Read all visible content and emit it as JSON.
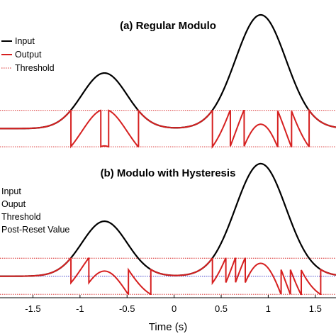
{
  "chart_data": [
    {
      "type": "line",
      "title": "(a) Regular Modulo",
      "x_range": [
        -1.85,
        1.72
      ],
      "y_range": [
        -0.5,
        2.8
      ],
      "legend": {
        "placement": "top-left",
        "entries": [
          {
            "label": "Input",
            "color": "#000000",
            "style": "solid"
          },
          {
            "label": "Output",
            "color": "#d62020",
            "style": "solid"
          },
          {
            "label": "Threshold",
            "color": "#d62020",
            "style": "dotted"
          }
        ]
      },
      "input": {
        "centers": [
          -0.74,
          0.92
        ],
        "amplitudes": [
          1.28,
          2.62
        ],
        "widths": [
          0.34,
          0.38
        ]
      },
      "modulo": {
        "low": -0.42,
        "high": 0.42,
        "hysteresis": 0
      },
      "threshold_levels": [
        -0.42,
        0.42
      ]
    },
    {
      "type": "line",
      "title": "(b) Modulo with Hysteresis",
      "x_range": [
        -1.85,
        1.72
      ],
      "y_range": [
        -0.5,
        2.8
      ],
      "legend": {
        "placement": "top-left",
        "entries": [
          {
            "label": "Input",
            "color": "#000000",
            "style": "solid"
          },
          {
            "label": "Ouput",
            "color": "#d62020",
            "style": "solid"
          },
          {
            "label": "Threshold",
            "color": "#d62020",
            "style": "dotted"
          },
          {
            "label": "Post-Reset Value",
            "color": "#2020c0",
            "style": "dotted"
          }
        ]
      },
      "input": {
        "centers": [
          -0.74,
          0.92
        ],
        "amplitudes": [
          1.28,
          2.62
        ],
        "widths": [
          0.34,
          0.38
        ]
      },
      "modulo": {
        "low": -0.42,
        "high": 0.42,
        "hysteresis": 0.26
      },
      "threshold_levels": [
        -0.42,
        0.42
      ],
      "post_reset_level": 0.0
    }
  ],
  "x_axis": {
    "label": "Time (s)",
    "ticks": [
      -1.5,
      -1,
      -0.5,
      0,
      0.5,
      1,
      1.5
    ],
    "tick_labels": [
      "-1.5",
      "-1",
      "-0.5",
      "0",
      "0.5",
      "1",
      "1.5"
    ]
  }
}
